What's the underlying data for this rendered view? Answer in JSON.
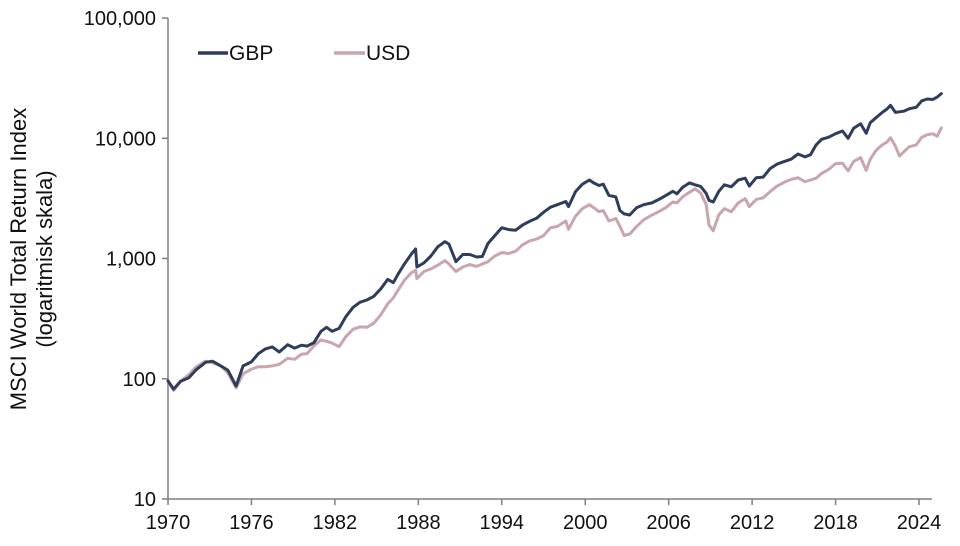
{
  "chart_data": {
    "type": "line",
    "title": "",
    "xlabel": "",
    "ylabel": "MSCI World Total Return Index",
    "ylabel_sub": "(logaritmisk skala)",
    "y_scale": "log",
    "ylim": [
      10,
      100000
    ],
    "xlim": [
      1970,
      2025.7
    ],
    "grid": false,
    "legend_position": "top-left",
    "y_ticks": [
      10,
      100,
      1000,
      10000,
      100000
    ],
    "y_tick_labels": [
      "10",
      "100",
      "1,000",
      "10,000",
      "100,000"
    ],
    "x_ticks": [
      1970,
      1976,
      1982,
      1988,
      1994,
      2000,
      2006,
      2012,
      2018,
      2024
    ],
    "x_tick_labels": [
      "1970",
      "1976",
      "1982",
      "1988",
      "1994",
      "2000",
      "2006",
      "2012",
      "2018",
      "2024"
    ],
    "series": [
      {
        "name": "GBP",
        "color": "#2f3d5c",
        "points": [
          [
            1970.0,
            96
          ],
          [
            1970.4,
            82
          ],
          [
            1970.9,
            95
          ],
          [
            1971.5,
            102
          ],
          [
            1972.0,
            118
          ],
          [
            1972.7,
            137
          ],
          [
            1973.2,
            140
          ],
          [
            1973.8,
            128
          ],
          [
            1974.3,
            118
          ],
          [
            1974.9,
            87
          ],
          [
            1975.4,
            128
          ],
          [
            1976.0,
            138
          ],
          [
            1976.5,
            162
          ],
          [
            1977.0,
            177
          ],
          [
            1977.5,
            184
          ],
          [
            1978.0,
            167
          ],
          [
            1978.6,
            192
          ],
          [
            1979.1,
            180
          ],
          [
            1979.6,
            190
          ],
          [
            1980.0,
            187
          ],
          [
            1980.5,
            200
          ],
          [
            1981.0,
            248
          ],
          [
            1981.4,
            268
          ],
          [
            1981.8,
            248
          ],
          [
            1982.3,
            262
          ],
          [
            1982.8,
            330
          ],
          [
            1983.3,
            392
          ],
          [
            1983.8,
            432
          ],
          [
            1984.3,
            452
          ],
          [
            1984.8,
            485
          ],
          [
            1985.3,
            560
          ],
          [
            1985.8,
            670
          ],
          [
            1986.2,
            630
          ],
          [
            1986.6,
            760
          ],
          [
            1987.0,
            900
          ],
          [
            1987.5,
            1090
          ],
          [
            1987.8,
            1200
          ],
          [
            1987.9,
            850
          ],
          [
            1988.4,
            920
          ],
          [
            1988.9,
            1050
          ],
          [
            1989.4,
            1250
          ],
          [
            1989.9,
            1380
          ],
          [
            1990.2,
            1320
          ],
          [
            1990.7,
            940
          ],
          [
            1991.2,
            1080
          ],
          [
            1991.7,
            1080
          ],
          [
            1992.2,
            1030
          ],
          [
            1992.6,
            1040
          ],
          [
            1993.0,
            1330
          ],
          [
            1993.5,
            1550
          ],
          [
            1994.0,
            1800
          ],
          [
            1994.5,
            1740
          ],
          [
            1995.0,
            1720
          ],
          [
            1995.5,
            1900
          ],
          [
            1996.0,
            2040
          ],
          [
            1996.5,
            2160
          ],
          [
            1997.0,
            2420
          ],
          [
            1997.5,
            2670
          ],
          [
            1998.0,
            2800
          ],
          [
            1998.6,
            2980
          ],
          [
            1998.8,
            2700
          ],
          [
            1999.3,
            3600
          ],
          [
            1999.8,
            4150
          ],
          [
            2000.3,
            4500
          ],
          [
            2000.6,
            4250
          ],
          [
            2001.0,
            4050
          ],
          [
            2001.3,
            4150
          ],
          [
            2001.7,
            3350
          ],
          [
            2002.2,
            3250
          ],
          [
            2002.5,
            2500
          ],
          [
            2002.8,
            2350
          ],
          [
            2003.2,
            2300
          ],
          [
            2003.7,
            2650
          ],
          [
            2004.2,
            2800
          ],
          [
            2004.8,
            2900
          ],
          [
            2005.3,
            3100
          ],
          [
            2005.8,
            3350
          ],
          [
            2006.3,
            3620
          ],
          [
            2006.6,
            3450
          ],
          [
            2007.0,
            3900
          ],
          [
            2007.5,
            4250
          ],
          [
            2007.9,
            4100
          ],
          [
            2008.3,
            3980
          ],
          [
            2008.7,
            3480
          ],
          [
            2008.9,
            3050
          ],
          [
            2009.2,
            2950
          ],
          [
            2009.6,
            3600
          ],
          [
            2010.0,
            4100
          ],
          [
            2010.5,
            3950
          ],
          [
            2011.0,
            4500
          ],
          [
            2011.5,
            4650
          ],
          [
            2011.8,
            4000
          ],
          [
            2012.3,
            4700
          ],
          [
            2012.8,
            4750
          ],
          [
            2013.3,
            5600
          ],
          [
            2013.8,
            6100
          ],
          [
            2014.3,
            6400
          ],
          [
            2014.8,
            6700
          ],
          [
            2015.3,
            7400
          ],
          [
            2015.8,
            7000
          ],
          [
            2016.2,
            7300
          ],
          [
            2016.6,
            8800
          ],
          [
            2017.0,
            9800
          ],
          [
            2017.5,
            10200
          ],
          [
            2018.0,
            10900
          ],
          [
            2018.5,
            11500
          ],
          [
            2018.9,
            10000
          ],
          [
            2019.3,
            12100
          ],
          [
            2019.8,
            13200
          ],
          [
            2020.2,
            11000
          ],
          [
            2020.5,
            13500
          ],
          [
            2020.9,
            14800
          ],
          [
            2021.3,
            16200
          ],
          [
            2021.7,
            17500
          ],
          [
            2021.95,
            18800
          ],
          [
            2022.3,
            16400
          ],
          [
            2022.6,
            16600
          ],
          [
            2022.9,
            16800
          ],
          [
            2023.3,
            17600
          ],
          [
            2023.8,
            18100
          ],
          [
            2024.2,
            20500
          ],
          [
            2024.6,
            21200
          ],
          [
            2025.0,
            21000
          ],
          [
            2025.3,
            22000
          ],
          [
            2025.6,
            23500
          ]
        ]
      },
      {
        "name": "USD",
        "color": "#c9a5ad",
        "points": [
          [
            1970.0,
            96
          ],
          [
            1970.4,
            80
          ],
          [
            1970.9,
            95
          ],
          [
            1971.5,
            108
          ],
          [
            1972.0,
            125
          ],
          [
            1972.7,
            140
          ],
          [
            1973.2,
            136
          ],
          [
            1973.8,
            128
          ],
          [
            1974.3,
            112
          ],
          [
            1974.9,
            84
          ],
          [
            1975.4,
            110
          ],
          [
            1976.0,
            120
          ],
          [
            1976.5,
            126
          ],
          [
            1977.0,
            126
          ],
          [
            1977.5,
            128
          ],
          [
            1978.0,
            132
          ],
          [
            1978.6,
            148
          ],
          [
            1979.1,
            145
          ],
          [
            1979.6,
            160
          ],
          [
            1980.0,
            162
          ],
          [
            1980.5,
            188
          ],
          [
            1981.0,
            210
          ],
          [
            1981.4,
            205
          ],
          [
            1981.8,
            198
          ],
          [
            1982.3,
            185
          ],
          [
            1982.8,
            225
          ],
          [
            1983.3,
            258
          ],
          [
            1983.8,
            270
          ],
          [
            1984.3,
            268
          ],
          [
            1984.8,
            290
          ],
          [
            1985.3,
            340
          ],
          [
            1985.8,
            420
          ],
          [
            1986.2,
            470
          ],
          [
            1986.6,
            560
          ],
          [
            1987.0,
            660
          ],
          [
            1987.5,
            760
          ],
          [
            1987.8,
            800
          ],
          [
            1987.9,
            680
          ],
          [
            1988.4,
            780
          ],
          [
            1988.9,
            820
          ],
          [
            1989.4,
            880
          ],
          [
            1989.9,
            960
          ],
          [
            1990.2,
            900
          ],
          [
            1990.7,
            780
          ],
          [
            1991.2,
            850
          ],
          [
            1991.7,
            890
          ],
          [
            1992.2,
            860
          ],
          [
            1992.6,
            900
          ],
          [
            1993.0,
            940
          ],
          [
            1993.5,
            1050
          ],
          [
            1994.0,
            1120
          ],
          [
            1994.5,
            1100
          ],
          [
            1995.0,
            1150
          ],
          [
            1995.5,
            1300
          ],
          [
            1996.0,
            1400
          ],
          [
            1996.5,
            1450
          ],
          [
            1997.0,
            1550
          ],
          [
            1997.5,
            1800
          ],
          [
            1998.0,
            1850
          ],
          [
            1998.6,
            2050
          ],
          [
            1998.8,
            1750
          ],
          [
            1999.3,
            2250
          ],
          [
            1999.8,
            2600
          ],
          [
            2000.3,
            2800
          ],
          [
            2000.6,
            2650
          ],
          [
            2001.0,
            2450
          ],
          [
            2001.3,
            2500
          ],
          [
            2001.7,
            2050
          ],
          [
            2002.2,
            2150
          ],
          [
            2002.5,
            1850
          ],
          [
            2002.8,
            1550
          ],
          [
            2003.2,
            1600
          ],
          [
            2003.7,
            1850
          ],
          [
            2004.2,
            2100
          ],
          [
            2004.8,
            2300
          ],
          [
            2005.3,
            2450
          ],
          [
            2005.8,
            2650
          ],
          [
            2006.3,
            2950
          ],
          [
            2006.6,
            2900
          ],
          [
            2007.0,
            3250
          ],
          [
            2007.5,
            3550
          ],
          [
            2007.9,
            3800
          ],
          [
            2008.3,
            3500
          ],
          [
            2008.7,
            2800
          ],
          [
            2008.9,
            1900
          ],
          [
            2009.2,
            1700
          ],
          [
            2009.6,
            2300
          ],
          [
            2010.0,
            2600
          ],
          [
            2010.5,
            2450
          ],
          [
            2011.0,
            2900
          ],
          [
            2011.5,
            3150
          ],
          [
            2011.8,
            2700
          ],
          [
            2012.3,
            3100
          ],
          [
            2012.8,
            3200
          ],
          [
            2013.3,
            3600
          ],
          [
            2013.8,
            4000
          ],
          [
            2014.3,
            4300
          ],
          [
            2014.8,
            4550
          ],
          [
            2015.3,
            4700
          ],
          [
            2015.8,
            4350
          ],
          [
            2016.2,
            4500
          ],
          [
            2016.6,
            4650
          ],
          [
            2017.0,
            5100
          ],
          [
            2017.5,
            5500
          ],
          [
            2018.0,
            6150
          ],
          [
            2018.5,
            6200
          ],
          [
            2018.9,
            5350
          ],
          [
            2019.3,
            6400
          ],
          [
            2019.8,
            6900
          ],
          [
            2020.2,
            5400
          ],
          [
            2020.5,
            6700
          ],
          [
            2020.9,
            7900
          ],
          [
            2021.3,
            8700
          ],
          [
            2021.7,
            9300
          ],
          [
            2021.95,
            10100
          ],
          [
            2022.3,
            8600
          ],
          [
            2022.6,
            7100
          ],
          [
            2022.9,
            7700
          ],
          [
            2023.3,
            8500
          ],
          [
            2023.8,
            8800
          ],
          [
            2024.2,
            10200
          ],
          [
            2024.6,
            10700
          ],
          [
            2025.0,
            10900
          ],
          [
            2025.3,
            10400
          ],
          [
            2025.6,
            12200
          ]
        ]
      }
    ]
  }
}
